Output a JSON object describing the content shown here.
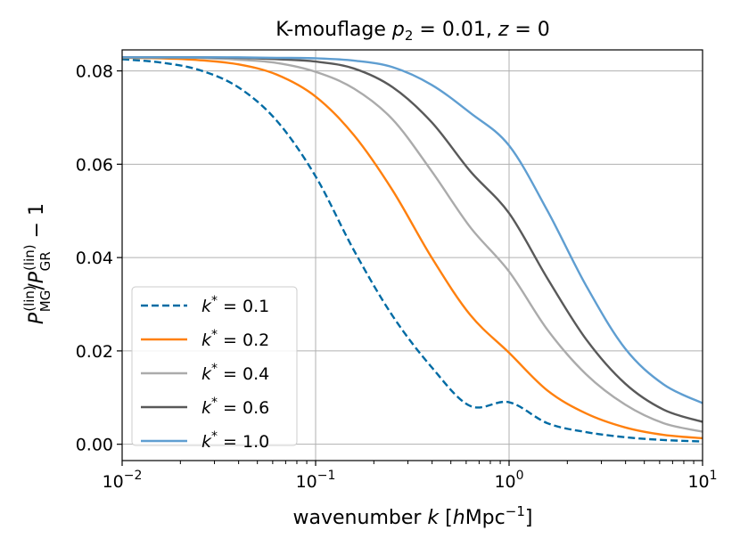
{
  "chart_data": {
    "type": "line",
    "title": "K-mouflage p_2 = 0.01, z = 0",
    "title_parts": {
      "prefix": "K-mouflage ",
      "p": "p",
      "p_sub": "2",
      "p_eq": " = 0.01, ",
      "z": "z",
      "z_eq": " = 0"
    },
    "xlabel": "wavenumber k [hMpc^-1]",
    "xlabel_parts": {
      "prefix": "wavenumber ",
      "k": "k",
      "bracket_open": " [",
      "h": "h",
      "unit": "Mpc",
      "exp": "−1",
      "bracket_close": "]"
    },
    "ylabel": "P_MG^(lin)/P_GR^(lin) − 1",
    "ylabel_parts": {
      "P1": "P",
      "sub1": "MG",
      "sup1": "(lin)",
      "slash": "/",
      "P2": "P",
      "sub2": "GR",
      "sup2": "(lin)",
      "tail": " − 1"
    },
    "xscale": "log",
    "xlim": [
      0.01,
      10
    ],
    "ylim": [
      -0.0035,
      0.0845
    ],
    "grid": true,
    "x_ticks": [
      {
        "value": 0.01,
        "base": "10",
        "exp": "−2"
      },
      {
        "value": 0.1,
        "base": "10",
        "exp": "−1"
      },
      {
        "value": 1,
        "base": "10",
        "exp": "0"
      },
      {
        "value": 10,
        "base": "10",
        "exp": "1"
      }
    ],
    "y_ticks": [
      {
        "value": 0.0,
        "label": "0.00"
      },
      {
        "value": 0.02,
        "label": "0.02"
      },
      {
        "value": 0.04,
        "label": "0.04"
      },
      {
        "value": 0.06,
        "label": "0.06"
      },
      {
        "value": 0.08,
        "label": "0.08"
      }
    ],
    "legend_position": "lower-left",
    "x": [
      0.01,
      0.0158,
      0.025,
      0.0398,
      0.063,
      0.1,
      0.158,
      0.25,
      0.398,
      0.63,
      1.0,
      1.58,
      2.5,
      3.98,
      6.3,
      10
    ],
    "series": [
      {
        "name": "k* = 0.1",
        "k_star": "0.1",
        "color": "#006ba4",
        "dash": "dashed",
        "values": [
          0.0825,
          0.0818,
          0.0802,
          0.0765,
          0.0693,
          0.0574,
          0.0415,
          0.0275,
          0.0165,
          0.0082,
          0.009,
          0.0045,
          0.0026,
          0.0015,
          0.0009,
          0.0006
        ]
      },
      {
        "name": "k* = 0.2",
        "k_star": "0.2",
        "color": "#ff800e",
        "dash": "solid",
        "values": [
          0.0828,
          0.0827,
          0.0823,
          0.0814,
          0.0792,
          0.0745,
          0.0662,
          0.0544,
          0.04,
          0.0277,
          0.0196,
          0.0115,
          0.0066,
          0.0036,
          0.002,
          0.0013
        ]
      },
      {
        "name": "k* = 0.4",
        "k_star": "0.4",
        "color": "#ababab",
        "dash": "solid",
        "values": [
          0.0829,
          0.0829,
          0.0828,
          0.0824,
          0.0817,
          0.0798,
          0.0762,
          0.0696,
          0.0585,
          0.0465,
          0.037,
          0.0245,
          0.015,
          0.0085,
          0.0045,
          0.0027
        ]
      },
      {
        "name": "k* = 0.6",
        "k_star": "0.6",
        "color": "#595959",
        "dash": "solid",
        "values": [
          0.0829,
          0.0829,
          0.0829,
          0.0828,
          0.0825,
          0.082,
          0.0805,
          0.0765,
          0.069,
          0.0585,
          0.0495,
          0.0355,
          0.0225,
          0.013,
          0.0074,
          0.0048
        ]
      },
      {
        "name": "k* = 1.0",
        "k_star": "1.0",
        "color": "#5f9ed1",
        "dash": "solid",
        "values": [
          0.0829,
          0.0829,
          0.0829,
          0.0829,
          0.0828,
          0.0827,
          0.0822,
          0.0808,
          0.077,
          0.071,
          0.064,
          0.05,
          0.034,
          0.0205,
          0.0128,
          0.0088
        ]
      }
    ]
  }
}
